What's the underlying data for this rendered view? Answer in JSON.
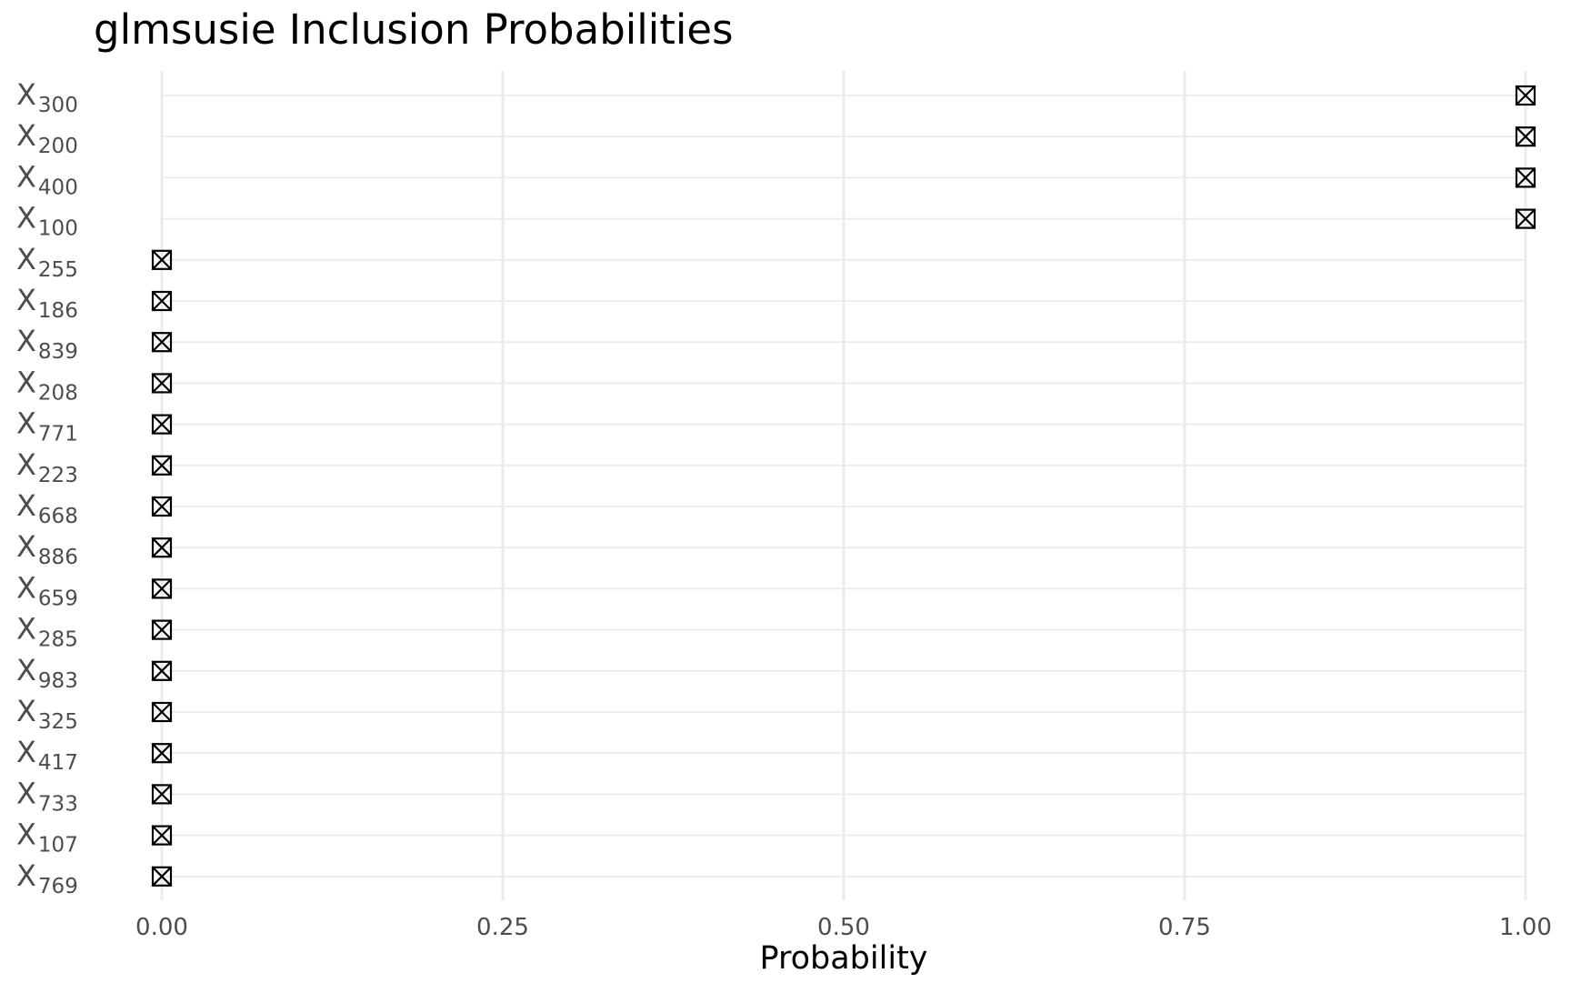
{
  "chart_data": {
    "type": "scatter",
    "title": "glmsusie Inclusion Probabilities",
    "xlabel": "Probability",
    "ylabel": "",
    "xlim": [
      0,
      1
    ],
    "x_ticks": [
      0.0,
      0.25,
      0.5,
      0.75,
      1.0
    ],
    "x_tick_labels": [
      "0.00",
      "0.25",
      "0.50",
      "0.75",
      "1.00"
    ],
    "grid": true,
    "marker": "square-cross",
    "marker_color": "#000000",
    "grid_color": "#ebebeb",
    "points": [
      {
        "label_base": "X",
        "label_sub": "300",
        "value": 1.0
      },
      {
        "label_base": "X",
        "label_sub": "200",
        "value": 1.0
      },
      {
        "label_base": "X",
        "label_sub": "400",
        "value": 1.0
      },
      {
        "label_base": "X",
        "label_sub": "100",
        "value": 1.0
      },
      {
        "label_base": "X",
        "label_sub": "255",
        "value": 0.0
      },
      {
        "label_base": "X",
        "label_sub": "186",
        "value": 0.0
      },
      {
        "label_base": "X",
        "label_sub": "839",
        "value": 0.0
      },
      {
        "label_base": "X",
        "label_sub": "208",
        "value": 0.0
      },
      {
        "label_base": "X",
        "label_sub": "771",
        "value": 0.0
      },
      {
        "label_base": "X",
        "label_sub": "223",
        "value": 0.0
      },
      {
        "label_base": "X",
        "label_sub": "668",
        "value": 0.0
      },
      {
        "label_base": "X",
        "label_sub": "886",
        "value": 0.0
      },
      {
        "label_base": "X",
        "label_sub": "659",
        "value": 0.0
      },
      {
        "label_base": "X",
        "label_sub": "285",
        "value": 0.0
      },
      {
        "label_base": "X",
        "label_sub": "983",
        "value": 0.0
      },
      {
        "label_base": "X",
        "label_sub": "325",
        "value": 0.0
      },
      {
        "label_base": "X",
        "label_sub": "417",
        "value": 0.0
      },
      {
        "label_base": "X",
        "label_sub": "733",
        "value": 0.0
      },
      {
        "label_base": "X",
        "label_sub": "107",
        "value": 0.0
      },
      {
        "label_base": "X",
        "label_sub": "769",
        "value": 0.0
      }
    ]
  }
}
